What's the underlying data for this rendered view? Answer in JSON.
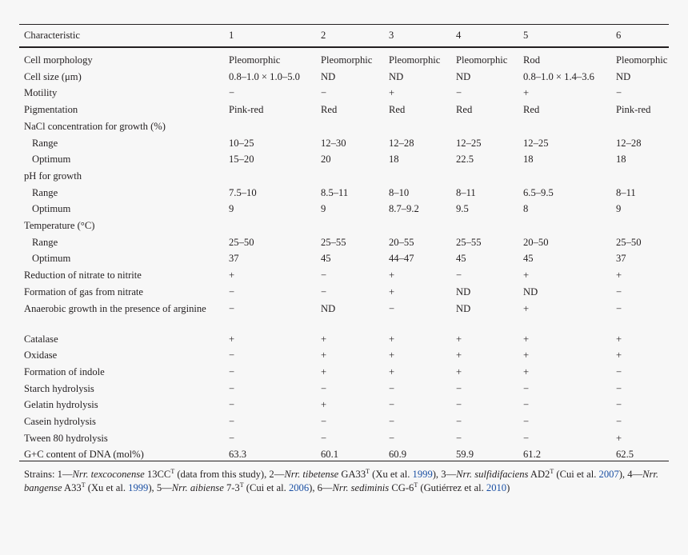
{
  "table": {
    "headers": [
      "Characteristic",
      "1",
      "2",
      "3",
      "4",
      "5",
      "6"
    ],
    "rows": [
      {
        "label": "Cell morphology",
        "sub": false,
        "cells": [
          "Pleomorphic",
          "Pleomorphic",
          "Pleomorphic",
          "Pleomorphic",
          "Rod",
          "Pleomorphic"
        ]
      },
      {
        "label": "Cell size (μm)",
        "sub": false,
        "cells": [
          "0.8–1.0 × 1.0–5.0",
          "ND",
          "ND",
          "ND",
          "0.8–1.0 × 1.4–3.6",
          "ND"
        ]
      },
      {
        "label": "Motility",
        "sub": false,
        "cells": [
          "−",
          "−",
          "+",
          "−",
          "+",
          "−"
        ]
      },
      {
        "label": "Pigmentation",
        "sub": false,
        "cells": [
          "Pink-red",
          "Red",
          "Red",
          "Red",
          "Red",
          "Pink-red"
        ]
      },
      {
        "label": "NaCl concentration for growth (%)",
        "sub": false,
        "cells": [
          "",
          "",
          "",
          "",
          "",
          ""
        ]
      },
      {
        "label": "Range",
        "sub": true,
        "cells": [
          "10–25",
          "12–30",
          "12–28",
          "12–25",
          "12–25",
          "12–28"
        ]
      },
      {
        "label": "Optimum",
        "sub": true,
        "cells": [
          "15–20",
          "20",
          "18",
          "22.5",
          "18",
          "18"
        ]
      },
      {
        "label": "pH for growth",
        "sub": false,
        "cells": [
          "",
          "",
          "",
          "",
          "",
          ""
        ]
      },
      {
        "label": "Range",
        "sub": true,
        "cells": [
          "7.5–10",
          "8.5–11",
          "8–10",
          "8–11",
          "6.5–9.5",
          "8–11"
        ]
      },
      {
        "label": "Optimum",
        "sub": true,
        "cells": [
          "9",
          "9",
          "8.7–9.2",
          "9.5",
          "8",
          "9"
        ]
      },
      {
        "label": "Temperature (°C)",
        "sub": false,
        "cells": [
          "",
          "",
          "",
          "",
          "",
          ""
        ]
      },
      {
        "label": "Range",
        "sub": true,
        "cells": [
          "25–50",
          "25–55",
          "20–55",
          "25–55",
          "20–50",
          "25–50"
        ]
      },
      {
        "label": "Optimum",
        "sub": true,
        "cells": [
          "37",
          "45",
          "44–47",
          "45",
          "45",
          "37"
        ]
      },
      {
        "label": "Reduction of nitrate to nitrite",
        "sub": false,
        "cells": [
          "+",
          "−",
          "+",
          "−",
          "+",
          "+"
        ]
      },
      {
        "label": "Formation of gas from nitrate",
        "sub": false,
        "cells": [
          "−",
          "−",
          "+",
          "ND",
          "ND",
          "−"
        ]
      },
      {
        "label": "Anaerobic growth in the presence of arginine",
        "sub": false,
        "wrap": true,
        "cells": [
          "−",
          "ND",
          "−",
          "ND",
          "+",
          "−"
        ]
      },
      {
        "label": "Catalase",
        "sub": false,
        "cells": [
          "+",
          "+",
          "+",
          "+",
          "+",
          "+"
        ]
      },
      {
        "label": "Oxidase",
        "sub": false,
        "cells": [
          "−",
          "+",
          "+",
          "+",
          "+",
          "+"
        ]
      },
      {
        "label": "Formation of indole",
        "sub": false,
        "cells": [
          "−",
          "+",
          "+",
          "+",
          "+",
          "−"
        ]
      },
      {
        "label": "Starch hydrolysis",
        "sub": false,
        "cells": [
          "−",
          "−",
          "−",
          "−",
          "−",
          "−"
        ]
      },
      {
        "label": "Gelatin hydrolysis",
        "sub": false,
        "cells": [
          "−",
          "+",
          "−",
          "−",
          "−",
          "−"
        ]
      },
      {
        "label": "Casein hydrolysis",
        "sub": false,
        "cells": [
          "−",
          "−",
          "−",
          "−",
          "−",
          "−"
        ]
      },
      {
        "label": "Tween 80 hydrolysis",
        "sub": false,
        "cells": [
          "−",
          "−",
          "−",
          "−",
          "−",
          "+"
        ]
      },
      {
        "label": "G+C content of DNA (mol%)",
        "sub": false,
        "cells": [
          "63.3",
          "60.1",
          "60.9",
          "59.9",
          "61.2",
          "62.5"
        ]
      }
    ]
  },
  "footnote": {
    "t1": "Strains: 1—",
    "s1": "Nrr. texcoconense",
    "t2": " 13CC",
    "sup": "T",
    "t3": " (data from this study), 2—",
    "s2": "Nrr. tibetense",
    "t4": " GA33",
    "t5": " (Xu et al. ",
    "r1": "1999",
    "t6": "), 3—",
    "s3": "Nrr. sulfidifaciens",
    "t7": " AD2",
    "t8": " (Cui et al. ",
    "r2": "2007",
    "t9": "), 4—",
    "s4": "Nrr. bangense",
    "t10": " A33",
    "t11": " (Xu et al. ",
    "r3": "1999",
    "t12": "), 5—",
    "s5": "Nrr. aibiense",
    "t13": " 7-3",
    "t14": " (Cui et al. ",
    "r4": "2006",
    "t15": "), 6—",
    "s6": "Nrr. sediminis",
    "t16": " CG-6",
    "t17": " (Gutiérrez et al. ",
    "r5": "2010",
    "t18": ")"
  }
}
